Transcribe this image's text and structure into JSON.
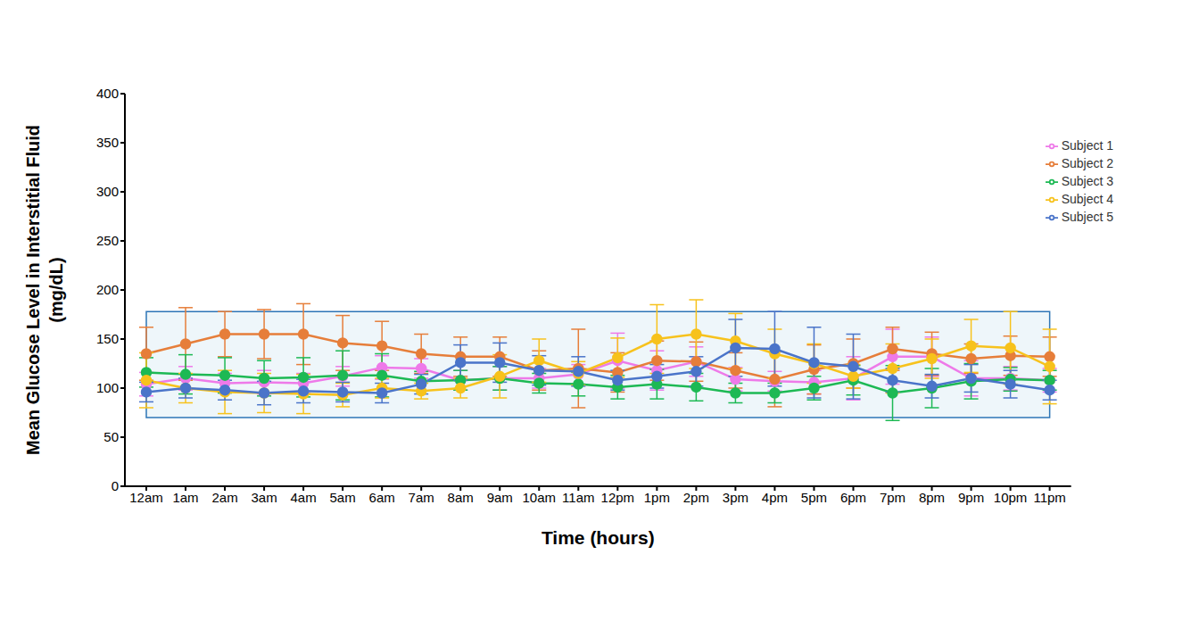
{
  "chart_data": {
    "type": "line",
    "xlabel": "Time (hours)",
    "ylabel": "Mean Glucose Level in Interstitial Fluid (mg/dL)",
    "categories": [
      "12am",
      "1am",
      "2am",
      "3am",
      "4am",
      "5am",
      "6am",
      "7am",
      "8am",
      "9am",
      "10am",
      "11am",
      "12pm",
      "1pm",
      "2pm",
      "3pm",
      "4pm",
      "5pm",
      "6pm",
      "7pm",
      "8pm",
      "9pm",
      "10pm",
      "11pm"
    ],
    "series": [
      {
        "name": "Subject 1",
        "color": "#ee7ae9",
        "marker": "circle",
        "values": [
          104,
          110,
          105,
          106,
          105,
          112,
          121,
          120,
          108,
          110,
          110,
          114,
          128,
          118,
          127,
          109,
          107,
          106,
          110,
          132,
          132,
          110,
          110,
          108
        ],
        "errors": [
          12,
          12,
          10,
          12,
          10,
          10,
          12,
          10,
          10,
          12,
          10,
          10,
          28,
          20,
          15,
          12,
          10,
          12,
          22,
          28,
          20,
          18,
          12,
          12
        ]
      },
      {
        "name": "Subject 2",
        "color": "#e67e3a",
        "marker": "circle",
        "values": [
          135,
          145,
          155,
          155,
          155,
          146,
          143,
          135,
          132,
          132,
          118,
          120,
          116,
          128,
          127,
          118,
          109,
          119,
          125,
          140,
          135,
          130,
          133,
          132
        ],
        "errors": [
          27,
          37,
          23,
          25,
          31,
          28,
          25,
          20,
          20,
          20,
          20,
          40,
          20,
          20,
          20,
          18,
          28,
          25,
          25,
          22,
          22,
          15,
          20,
          20
        ]
      },
      {
        "name": "Subject 3",
        "color": "#1db954",
        "marker": "circle",
        "values": [
          116,
          114,
          113,
          110,
          111,
          113,
          113,
          107,
          108,
          110,
          105,
          104,
          101,
          104,
          101,
          95,
          95,
          100,
          108,
          95,
          100,
          107,
          109,
          108
        ],
        "errors": [
          15,
          20,
          18,
          18,
          20,
          25,
          22,
          10,
          10,
          12,
          10,
          12,
          12,
          15,
          14,
          10,
          10,
          12,
          15,
          28,
          20,
          18,
          12,
          10
        ]
      },
      {
        "name": "Subject 4",
        "color": "#f7c21c",
        "marker": "circle",
        "values": [
          108,
          100,
          96,
          95,
          94,
          93,
          100,
          97,
          100,
          112,
          128,
          115,
          131,
          150,
          155,
          148,
          135,
          125,
          112,
          120,
          130,
          143,
          141,
          122
        ],
        "errors": [
          28,
          15,
          22,
          20,
          20,
          12,
          10,
          8,
          10,
          22,
          22,
          12,
          20,
          35,
          35,
          28,
          25,
          20,
          12,
          25,
          20,
          27,
          37,
          38
        ]
      },
      {
        "name": "Subject 5",
        "color": "#4a74c9",
        "marker": "circle",
        "values": [
          96,
          100,
          98,
          95,
          97,
          96,
          95,
          104,
          126,
          126,
          118,
          117,
          108,
          112,
          117,
          141,
          140,
          126,
          122,
          108,
          102,
          110,
          104,
          98
        ],
        "errors": [
          10,
          10,
          10,
          12,
          12,
          10,
          10,
          10,
          18,
          20,
          15,
          15,
          10,
          12,
          15,
          29,
          38,
          36,
          33,
          12,
          12,
          14,
          14,
          10
        ]
      }
    ],
    "target_range": [
      70,
      178
    ],
    "ylim": [
      0,
      400
    ],
    "yticks": [
      0,
      50,
      100,
      150,
      200,
      250,
      300,
      350,
      400
    ],
    "grid": false,
    "legend": "upper right"
  }
}
